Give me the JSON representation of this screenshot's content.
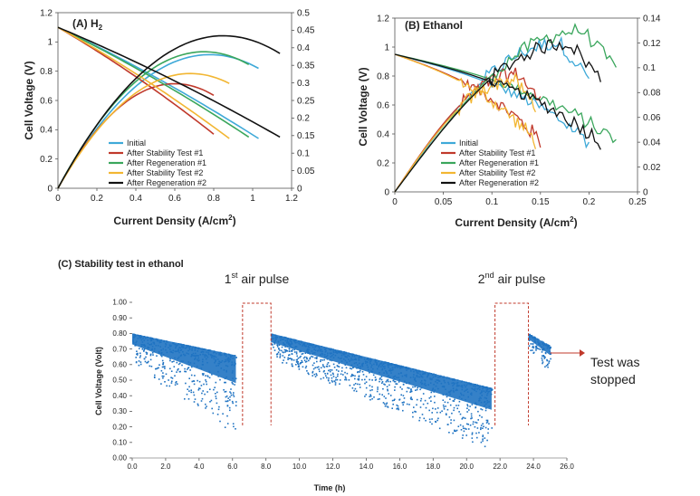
{
  "chart_data": [
    {
      "type": "line",
      "panel_label": "(A) H",
      "panel_label_sub": "2",
      "xlabel": "Current Density (A/cm",
      "xlabel_sup": "2",
      "xlabel_close": ")",
      "ylabel": "Cell Voltage (V)",
      "xlim": [
        0,
        1.2
      ],
      "ylim": [
        0,
        1.2
      ],
      "y2lim": [
        0,
        0.5
      ],
      "x_ticks": [
        "0",
        "0.2",
        "0.4",
        "0.6",
        "0.8",
        "1",
        "1.2"
      ],
      "y_ticks": [
        "0",
        "0.2",
        "0.4",
        "0.6",
        "0.8",
        "1",
        "1.2"
      ],
      "y2_ticks": [
        "0",
        "0.05",
        "0.1",
        "0.15",
        "0.2",
        "0.25",
        "0.3",
        "0.35",
        "0.4",
        "0.45",
        "0.5"
      ],
      "legend_position": "bottom-left",
      "series": [
        {
          "name": "Initial",
          "color": "#3ea9d8",
          "jmax": 1.03,
          "vend": 0.34,
          "pscale": 0.92,
          "jpk": 0.78
        },
        {
          "name": "After Stability Test #1",
          "color": "#c0392b",
          "jmax": 0.8,
          "vend": 0.37,
          "pscale": 0.72,
          "jpk": 0.6
        },
        {
          "name": "After Regeneration #1",
          "color": "#3aa65c",
          "jmax": 0.98,
          "vend": 0.35,
          "pscale": 0.94,
          "jpk": 0.75
        },
        {
          "name": "After Stability Test #2",
          "color": "#f2b632",
          "jmax": 0.88,
          "vend": 0.34,
          "pscale": 0.79,
          "jpk": 0.68
        },
        {
          "name": "After Regeneration #2",
          "color": "#111111",
          "jmax": 1.14,
          "vend": 0.35,
          "pscale": 1.05,
          "jpk": 0.85
        }
      ]
    },
    {
      "type": "line",
      "panel_label": "(B) Ethanol",
      "xlabel": "Current Density (A/cm",
      "xlabel_sup": "2",
      "xlabel_close": ")",
      "ylabel": "Cell Voltage (V)",
      "xlim": [
        0,
        0.25
      ],
      "ylim": [
        0,
        1.2
      ],
      "y2lim": [
        0,
        0.14
      ],
      "x_ticks": [
        "0",
        "0.05",
        "0.1",
        "0.15",
        "0.2",
        "0.25"
      ],
      "y_ticks": [
        "0",
        "0.2",
        "0.4",
        "0.6",
        "0.8",
        "1",
        "1.2"
      ],
      "y2_ticks": [
        "0",
        "0.02",
        "0.04",
        "0.06",
        "0.08",
        "0.1",
        "0.12",
        "0.14"
      ],
      "legend_position": "bottom-left",
      "series": [
        {
          "name": "Initial",
          "color": "#3ea9d8",
          "jmax": 0.2,
          "pmax": 0.12
        },
        {
          "name": "After Stability Test #1",
          "color": "#c0392b",
          "jmax": 0.15,
          "pmax": 0.095
        },
        {
          "name": "After Regeneration #1",
          "color": "#3aa65c",
          "jmax": 0.228,
          "pmax": 0.13
        },
        {
          "name": "After Stability Test #2",
          "color": "#f2b632",
          "jmax": 0.145,
          "pmax": 0.09
        },
        {
          "name": "After Regeneration #2",
          "color": "#111111",
          "jmax": 0.212,
          "pmax": 0.12
        }
      ]
    },
    {
      "type": "scatter",
      "panel_label": "(C) Stability test in ethanol",
      "xlabel": "Time (h)",
      "ylabel": "Cell Voltage (Volt)",
      "xlim": [
        0,
        26
      ],
      "ylim": [
        0,
        1
      ],
      "x_ticks": [
        "0.0",
        "2.0",
        "4.0",
        "6.0",
        "8.0",
        "10.0",
        "12.0",
        "14.0",
        "16.0",
        "18.0",
        "20.0",
        "22.0",
        "24.0",
        "26.0"
      ],
      "y_ticks": [
        "0.00",
        "0.10",
        "0.20",
        "0.30",
        "0.40",
        "0.50",
        "0.60",
        "0.70",
        "0.80",
        "0.90",
        "1.00"
      ],
      "point_color": "#1f73c2",
      "segments": [
        {
          "t_start": 0.0,
          "t_end": 6.2,
          "v_top_start": 0.8,
          "v_top_end": 0.66,
          "v_bot_start": 0.6,
          "v_bot_end": 0.15
        },
        {
          "t_start": 8.3,
          "t_end": 21.5,
          "v_top_start": 0.8,
          "v_top_end": 0.45,
          "v_bot_start": 0.64,
          "v_bot_end": 0.05
        },
        {
          "t_start": 23.7,
          "t_end": 25.0,
          "v_top_start": 0.8,
          "v_top_end": 0.72,
          "v_bot_start": 0.7,
          "v_bot_end": 0.55
        }
      ],
      "annotations": {
        "pulse1_prefix": "1",
        "pulse1_sup": "st",
        "pulse1_suffix": " air pulse",
        "pulse1_t": [
          6.6,
          8.3
        ],
        "pulse2_prefix": "2",
        "pulse2_sup": "nd",
        "pulse2_suffix": "  air pulse",
        "pulse2_t": [
          21.7,
          23.7
        ],
        "stop_line1": "Test was",
        "stop_line2": "stopped"
      }
    }
  ]
}
